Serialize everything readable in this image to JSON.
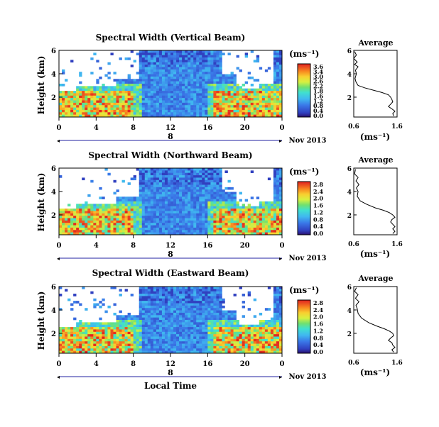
{
  "chart_data": [
    {
      "type": "heatmap",
      "title": "Spectral Width (Vertical Beam)",
      "ylabel": "Height (km)",
      "x_ticks": [
        "0",
        "4",
        "8",
        "12",
        "16",
        "20",
        "0"
      ],
      "y_ticks": [
        "6",
        "4",
        "2"
      ],
      "xlim": [
        0,
        24
      ],
      "ylim": [
        0.3,
        6
      ],
      "date_day": "8",
      "date_label": "Nov 2013",
      "colorbar": {
        "unit": "(ms⁻¹)",
        "ticks": [
          "3.6",
          "3.4",
          "3.0",
          "2.6",
          "2.2",
          "1.8",
          "1.6",
          "1.2",
          "0.8",
          "0.4",
          "0.0"
        ]
      },
      "profile": {
        "title": "Average",
        "xlabel": "(ms⁻¹)",
        "x_ticks": [
          "0.6",
          "1.6"
        ],
        "y_ticks": [
          "6",
          "4",
          "2"
        ],
        "xlim": [
          0.6,
          1.6
        ],
        "ylim": [
          0.3,
          6
        ],
        "points": [
          [
            0.62,
            5.9
          ],
          [
            0.66,
            5.6
          ],
          [
            0.6,
            5.3
          ],
          [
            0.68,
            5.0
          ],
          [
            0.62,
            4.8
          ],
          [
            0.7,
            4.6
          ],
          [
            0.64,
            4.3
          ],
          [
            0.66,
            4.0
          ],
          [
            0.63,
            3.6
          ],
          [
            0.65,
            3.3
          ],
          [
            0.7,
            3.0
          ],
          [
            0.85,
            2.8
          ],
          [
            1.05,
            2.6
          ],
          [
            1.25,
            2.4
          ],
          [
            1.4,
            2.2
          ],
          [
            1.45,
            2.0
          ],
          [
            1.48,
            1.8
          ],
          [
            1.5,
            1.6
          ],
          [
            1.45,
            1.4
          ],
          [
            1.4,
            1.2
          ],
          [
            1.48,
            1.0
          ],
          [
            1.55,
            0.8
          ],
          [
            1.5,
            0.6
          ],
          [
            1.52,
            0.4
          ]
        ]
      }
    },
    {
      "type": "heatmap",
      "title": "Spectral Width (Northward Beam)",
      "ylabel": "Height (km)",
      "x_ticks": [
        "0",
        "4",
        "8",
        "12",
        "16",
        "20",
        "0"
      ],
      "y_ticks": [
        "6",
        "4",
        "2"
      ],
      "xlim": [
        0,
        24
      ],
      "ylim": [
        0.3,
        6
      ],
      "date_day": "8",
      "date_label": "Nov 2013",
      "colorbar": {
        "unit": "(ms⁻¹)",
        "ticks": [
          "2.8",
          "2.4",
          "2.0",
          "1.6",
          "1.2",
          "0.8",
          "0.4",
          "0.0"
        ]
      },
      "profile": {
        "title": "Average",
        "xlabel": "(ms⁻¹)",
        "x_ticks": [
          "0.6",
          "1.6"
        ],
        "y_ticks": [
          "6",
          "4",
          "2"
        ],
        "xlim": [
          0.6,
          1.6
        ],
        "ylim": [
          0.3,
          6
        ],
        "points": [
          [
            0.64,
            5.9
          ],
          [
            0.62,
            5.5
          ],
          [
            0.7,
            5.2
          ],
          [
            0.65,
            4.9
          ],
          [
            0.72,
            4.6
          ],
          [
            0.66,
            4.3
          ],
          [
            0.7,
            4.0
          ],
          [
            0.68,
            3.6
          ],
          [
            0.75,
            3.2
          ],
          [
            0.9,
            2.9
          ],
          [
            1.1,
            2.6
          ],
          [
            1.28,
            2.4
          ],
          [
            1.42,
            2.2
          ],
          [
            1.5,
            2.0
          ],
          [
            1.55,
            1.8
          ],
          [
            1.48,
            1.6
          ],
          [
            1.45,
            1.4
          ],
          [
            1.5,
            1.2
          ],
          [
            1.55,
            1.0
          ],
          [
            1.5,
            0.8
          ],
          [
            1.55,
            0.6
          ],
          [
            1.5,
            0.4
          ]
        ]
      }
    },
    {
      "type": "heatmap",
      "title": "Spectral Width (Eastward Beam)",
      "ylabel": "Height (km)",
      "xlabel": "Local Time",
      "x_ticks": [
        "0",
        "4",
        "8",
        "12",
        "16",
        "20",
        "0"
      ],
      "y_ticks": [
        "6",
        "4",
        "2"
      ],
      "xlim": [
        0,
        24
      ],
      "ylim": [
        0.3,
        6
      ],
      "date_day": "8",
      "date_label": "Nov 2013",
      "colorbar": {
        "unit": "(ms⁻¹)",
        "ticks": [
          "2.8",
          "2.4",
          "2.0",
          "1.6",
          "1.2",
          "0.8",
          "0.4",
          "0.0"
        ]
      },
      "profile": {
        "title": "Average",
        "xlabel": "(ms⁻¹)",
        "x_ticks": [
          "0.6",
          "1.6"
        ],
        "y_ticks": [
          "6",
          "4",
          "2"
        ],
        "xlim": [
          0.6,
          1.6
        ],
        "ylim": [
          0.3,
          6
        ],
        "points": [
          [
            0.66,
            5.9
          ],
          [
            0.62,
            5.6
          ],
          [
            0.7,
            5.3
          ],
          [
            0.64,
            5.0
          ],
          [
            0.72,
            4.7
          ],
          [
            0.65,
            4.4
          ],
          [
            0.68,
            4.1
          ],
          [
            0.7,
            3.7
          ],
          [
            0.78,
            3.3
          ],
          [
            0.95,
            2.9
          ],
          [
            1.15,
            2.6
          ],
          [
            1.3,
            2.4
          ],
          [
            1.42,
            2.2
          ],
          [
            1.5,
            2.0
          ],
          [
            1.52,
            1.8
          ],
          [
            1.45,
            1.6
          ],
          [
            1.4,
            1.4
          ],
          [
            1.48,
            1.2
          ],
          [
            1.5,
            1.0
          ],
          [
            1.55,
            0.8
          ],
          [
            1.48,
            0.6
          ],
          [
            1.52,
            0.4
          ]
        ]
      }
    }
  ]
}
